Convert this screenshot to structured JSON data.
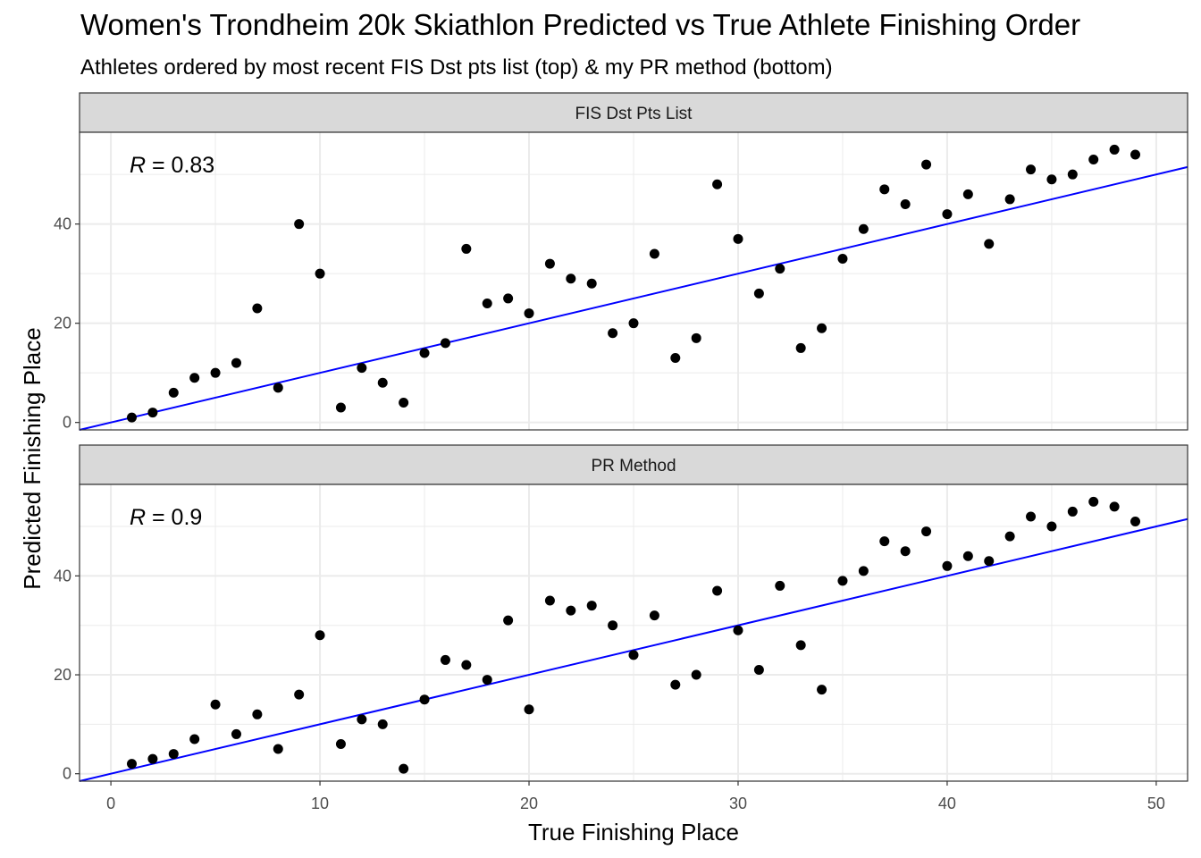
{
  "title": "Women's Trondheim 20k Skiathlon Predicted vs True Athlete Finishing Order",
  "subtitle": "Athletes ordered by most recent FIS Dst pts list (top) & my PR method (bottom)",
  "colors": {
    "point": "#000000",
    "reference_line": "#0000ff",
    "strip_fill": "#d9d9d9",
    "grid": "#ebebeb",
    "panel_border": "#333333"
  },
  "chart_data": {
    "type": "scatter",
    "xlabel": "True Finishing Place",
    "ylabel": "Predicted Finishing Place",
    "xlim": [
      -1.5,
      51.5
    ],
    "ylim": [
      -1.5,
      58.5
    ],
    "x_ticks": [
      0,
      10,
      20,
      30,
      40,
      50
    ],
    "y_ticks": [
      0,
      20,
      40
    ],
    "grid": true,
    "reference_line": {
      "slope": 1,
      "intercept": 0
    },
    "panels": [
      {
        "strip": "FIS Dst Pts List",
        "r_symbol": "R",
        "r_value": "= 0.83",
        "points": [
          [
            1,
            1
          ],
          [
            2,
            2
          ],
          [
            3,
            6
          ],
          [
            4,
            9
          ],
          [
            5,
            10
          ],
          [
            6,
            12
          ],
          [
            7,
            23
          ],
          [
            8,
            7
          ],
          [
            9,
            40
          ],
          [
            10,
            30
          ],
          [
            11,
            3
          ],
          [
            12,
            11
          ],
          [
            13,
            8
          ],
          [
            14,
            4
          ],
          [
            15,
            14
          ],
          [
            16,
            16
          ],
          [
            17,
            35
          ],
          [
            18,
            24
          ],
          [
            19,
            25
          ],
          [
            20,
            22
          ],
          [
            21,
            32
          ],
          [
            22,
            29
          ],
          [
            23,
            28
          ],
          [
            24,
            18
          ],
          [
            25,
            20
          ],
          [
            26,
            34
          ],
          [
            27,
            13
          ],
          [
            28,
            17
          ],
          [
            29,
            48
          ],
          [
            30,
            37
          ],
          [
            31,
            26
          ],
          [
            32,
            31
          ],
          [
            33,
            15
          ],
          [
            34,
            19
          ],
          [
            35,
            33
          ],
          [
            36,
            39
          ],
          [
            37,
            47
          ],
          [
            38,
            44
          ],
          [
            39,
            52
          ],
          [
            40,
            42
          ],
          [
            41,
            46
          ],
          [
            42,
            36
          ],
          [
            43,
            45
          ],
          [
            44,
            51
          ],
          [
            45,
            49
          ],
          [
            46,
            50
          ],
          [
            47,
            53
          ],
          [
            48,
            55
          ],
          [
            49,
            54
          ]
        ]
      },
      {
        "strip": "PR Method",
        "r_symbol": "R",
        "r_value": "= 0.9",
        "points": [
          [
            1,
            2
          ],
          [
            2,
            3
          ],
          [
            3,
            4
          ],
          [
            4,
            7
          ],
          [
            5,
            14
          ],
          [
            6,
            8
          ],
          [
            7,
            12
          ],
          [
            8,
            5
          ],
          [
            9,
            16
          ],
          [
            10,
            28
          ],
          [
            11,
            6
          ],
          [
            12,
            11
          ],
          [
            13,
            10
          ],
          [
            14,
            1
          ],
          [
            15,
            15
          ],
          [
            16,
            23
          ],
          [
            17,
            22
          ],
          [
            18,
            19
          ],
          [
            19,
            31
          ],
          [
            20,
            13
          ],
          [
            21,
            35
          ],
          [
            22,
            33
          ],
          [
            23,
            34
          ],
          [
            24,
            30
          ],
          [
            25,
            24
          ],
          [
            26,
            32
          ],
          [
            27,
            18
          ],
          [
            28,
            20
          ],
          [
            29,
            37
          ],
          [
            30,
            29
          ],
          [
            31,
            21
          ],
          [
            32,
            38
          ],
          [
            33,
            26
          ],
          [
            34,
            17
          ],
          [
            35,
            39
          ],
          [
            36,
            41
          ],
          [
            37,
            47
          ],
          [
            38,
            45
          ],
          [
            39,
            49
          ],
          [
            40,
            42
          ],
          [
            41,
            44
          ],
          [
            42,
            43
          ],
          [
            43,
            48
          ],
          [
            44,
            52
          ],
          [
            45,
            50
          ],
          [
            46,
            53
          ],
          [
            47,
            55
          ],
          [
            48,
            54
          ],
          [
            49,
            51
          ]
        ]
      }
    ]
  }
}
